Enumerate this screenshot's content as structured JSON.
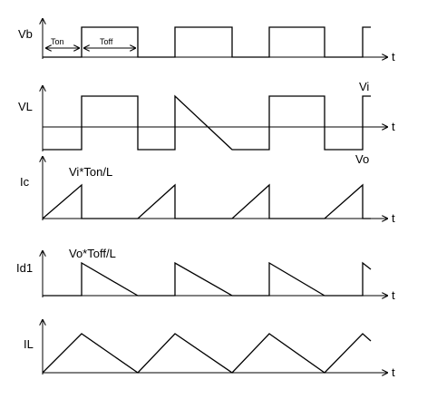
{
  "signals": {
    "vb": {
      "name": "Vb",
      "ton": "Ton",
      "toff": "Toff"
    },
    "vl": {
      "name": "VL",
      "top": "Vi",
      "bottom": "Vo"
    },
    "ic": {
      "name": "Ic",
      "annotation": "Vi*Ton/L"
    },
    "id1": {
      "name": "Id1",
      "annotation": "Vo*Toff/L"
    },
    "il": {
      "name": "IL"
    }
  },
  "time_label": "t"
}
